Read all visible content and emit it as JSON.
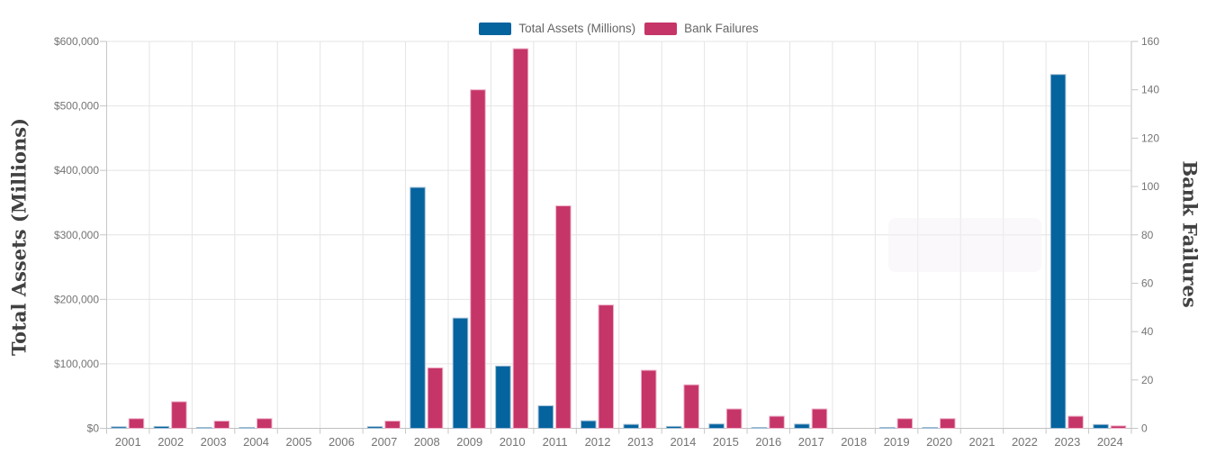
{
  "legend": {
    "items": [
      {
        "label": "Total Assets (Millions)",
        "color": "#05639e"
      },
      {
        "label": "Bank Failures",
        "color": "#c63568"
      }
    ]
  },
  "chart_data": {
    "type": "bar",
    "title": "",
    "categories": [
      "2001",
      "2002",
      "2003",
      "2004",
      "2005",
      "2006",
      "2007",
      "2008",
      "2009",
      "2010",
      "2011",
      "2012",
      "2013",
      "2014",
      "2015",
      "2016",
      "2017",
      "2018",
      "2019",
      "2020",
      "2021",
      "2022",
      "2023",
      "2024"
    ],
    "series": [
      {
        "name": "Total Assets (Millions)",
        "axis": "left",
        "color": "#05639e",
        "border_color": "#9dbbd3",
        "values": [
          2359,
          2873,
          1097,
          170,
          0,
          0,
          2603,
          373589,
          170909,
          96514,
          34923,
          11617,
          6044,
          2914,
          6728,
          277,
          6531,
          0,
          214,
          458,
          0,
          0,
          548705,
          5866
        ]
      },
      {
        "name": "Bank Failures",
        "axis": "right",
        "color": "#c63568",
        "border_color": "#edb0c8",
        "values": [
          4,
          11,
          3,
          4,
          0,
          0,
          3,
          25,
          140,
          157,
          92,
          51,
          24,
          18,
          8,
          5,
          8,
          0,
          4,
          4,
          0,
          0,
          5,
          1
        ]
      }
    ],
    "axes": {
      "left": {
        "title": "Total Assets (Millions)",
        "min": 0,
        "max": 600000,
        "step": 100000,
        "tick_labels": [
          "$0",
          "$100,000",
          "$200,000",
          "$300,000",
          "$400,000",
          "$500,000",
          "$600,000"
        ]
      },
      "right": {
        "title": "Bank Failures",
        "min": 0,
        "max": 160,
        "step": 20,
        "tick_labels": [
          "0",
          "20",
          "40",
          "60",
          "80",
          "100",
          "120",
          "140",
          "160"
        ]
      }
    },
    "grid": true,
    "legend_position": "top-center"
  }
}
